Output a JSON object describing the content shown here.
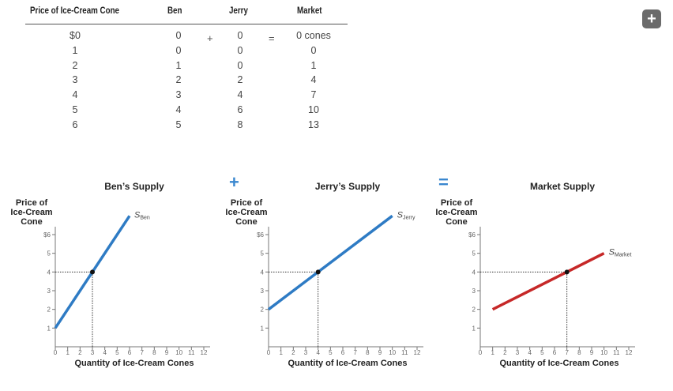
{
  "table": {
    "headers": [
      "Price of Ice-Cream Cone",
      "Ben",
      "Jerry",
      "Market"
    ],
    "rows": [
      [
        "$0",
        "0",
        "0",
        "0 cones"
      ],
      [
        "1",
        "0",
        "0",
        "0"
      ],
      [
        "2",
        "1",
        "0",
        "1"
      ],
      [
        "3",
        "2",
        "2",
        "4"
      ],
      [
        "4",
        "3",
        "4",
        "7"
      ],
      [
        "5",
        "4",
        "6",
        "10"
      ],
      [
        "6",
        "5",
        "8",
        "13"
      ]
    ],
    "plus_sign": "+",
    "equals_sign": "="
  },
  "operators": {
    "plus": "+",
    "equals": "="
  },
  "button_icon": "plus-icon",
  "chart_data": [
    {
      "type": "line",
      "title": "Ben’s Supply",
      "xlabel": "Quantity of Ice-Cream Cones",
      "ylabel": [
        "Price of",
        "Ice-Cream",
        "Cone"
      ],
      "xlim": [
        0,
        12
      ],
      "ylim": [
        0,
        6
      ],
      "x_ticks": [
        "0",
        "1",
        "2",
        "3",
        "4",
        "5",
        "6",
        "7",
        "8",
        "9",
        "10",
        "11",
        "12"
      ],
      "y_ticks": [
        "1",
        "2",
        "3",
        "4",
        "5",
        "$6"
      ],
      "series": [
        {
          "name": "S",
          "sub": "Ben",
          "color": "#2e7bc4",
          "x": [
            0,
            6
          ],
          "y": [
            1,
            7
          ]
        }
      ],
      "highlight": {
        "x": 3,
        "y": 4
      }
    },
    {
      "type": "line",
      "title": "Jerry’s Supply",
      "xlabel": "Quantity of Ice-Cream Cones",
      "ylabel": [
        "Price of",
        "Ice-Cream",
        "Cone"
      ],
      "xlim": [
        0,
        12
      ],
      "ylim": [
        0,
        6
      ],
      "x_ticks": [
        "0",
        "1",
        "2",
        "3",
        "4",
        "5",
        "6",
        "7",
        "8",
        "9",
        "10",
        "11",
        "12"
      ],
      "y_ticks": [
        "1",
        "2",
        "3",
        "4",
        "5",
        "$6"
      ],
      "series": [
        {
          "name": "S",
          "sub": "Jerry",
          "color": "#2e7bc4",
          "x": [
            0,
            10
          ],
          "y": [
            2,
            7
          ]
        }
      ],
      "highlight": {
        "x": 4,
        "y": 4
      }
    },
    {
      "type": "line",
      "title": "Market Supply",
      "xlabel": "Quantity of Ice-Cream Cones",
      "ylabel": [
        "Price of",
        "Ice-Cream",
        "Cone"
      ],
      "xlim": [
        0,
        12
      ],
      "ylim": [
        0,
        6
      ],
      "x_ticks": [
        "0",
        "1",
        "2",
        "3",
        "4",
        "5",
        "6",
        "7",
        "8",
        "9",
        "10",
        "11",
        "12"
      ],
      "y_ticks": [
        "1",
        "2",
        "3",
        "4",
        "5",
        "$6"
      ],
      "series": [
        {
          "name": "S",
          "sub": "Market",
          "color": "#c62828",
          "x": [
            1,
            10
          ],
          "y": [
            2,
            5
          ]
        }
      ],
      "highlight": {
        "x": 7,
        "y": 4
      }
    }
  ]
}
